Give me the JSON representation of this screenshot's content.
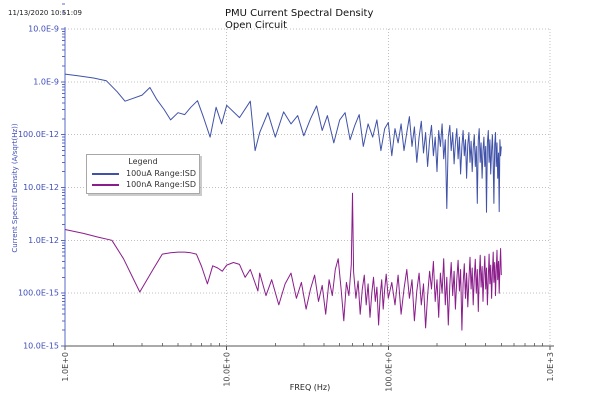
{
  "header": {
    "timestamp": "11/13/2020 10:51:09",
    "title_line1": "PMU Current Spectral Density",
    "title_line2": "Open Circuit"
  },
  "chart_data": {
    "type": "line",
    "title": "PMU Current Spectral Density",
    "subtitle": "Open Circuit",
    "xlabel": "FREQ (Hz)",
    "ylabel": "Current Spectral Density (A/sqrt(Hz))",
    "x_scale": "log",
    "y_scale": "log",
    "xlim": [
      1,
      1000
    ],
    "ylim": [
      1e-14,
      1e-08
    ],
    "grid": "dotted",
    "x_ticks": [
      {
        "value": 1,
        "label": "1.0E+0"
      },
      {
        "value": 10,
        "label": "10.0E+0"
      },
      {
        "value": 100,
        "label": "100.0E+0"
      },
      {
        "value": 1000,
        "label": "1.0E+3"
      }
    ],
    "y_ticks": [
      {
        "value": 1e-08,
        "label": "10.0E-9"
      },
      {
        "value": 1e-09,
        "label": "1.0E-9"
      },
      {
        "value": 1e-10,
        "label": "100.0E-12"
      },
      {
        "value": 1e-11,
        "label": "10.0E-12"
      },
      {
        "value": 1e-12,
        "label": "1.0E-12"
      },
      {
        "value": 1e-13,
        "label": "100.0E-15"
      },
      {
        "value": 1e-14,
        "label": "10.0E-15"
      }
    ],
    "legend": {
      "title": "Legend",
      "position": "left-middle"
    },
    "colors": {
      "axis_blue": "#5a68c8",
      "tick_text_blue": "#3e4eb8",
      "x_axis_line": "#555555",
      "gridline": "#c0c0c0"
    },
    "series": [
      {
        "name": "100uA Range:ISD",
        "color": "#4052a8",
        "points": [
          [
            1,
            1.4e-09
          ],
          [
            1.2,
            1.3e-09
          ],
          [
            1.5,
            1.18e-09
          ],
          [
            1.8,
            1.05e-09
          ],
          [
            2.1,
            6.5e-10
          ],
          [
            2.35,
            4.3e-10
          ],
          [
            2.6,
            4.8e-10
          ],
          [
            3,
            5.6e-10
          ],
          [
            3.35,
            7.8e-10
          ],
          [
            3.7,
            4.6e-10
          ],
          [
            4.1,
            3e-10
          ],
          [
            4.5,
            1.9e-10
          ],
          [
            5,
            2.6e-10
          ],
          [
            5.5,
            2.4e-10
          ],
          [
            6,
            3.3e-10
          ],
          [
            6.6,
            4.4e-10
          ],
          [
            7.2,
            2.1e-10
          ],
          [
            7.9,
            9e-11
          ],
          [
            8.6,
            3.3e-10
          ],
          [
            9.3,
            1.6e-10
          ],
          [
            10,
            3.6e-10
          ],
          [
            12,
            2.1e-10
          ],
          [
            14,
            4.3e-10
          ],
          [
            15,
            5e-11
          ],
          [
            16,
            1.1e-10
          ],
          [
            18,
            2.6e-10
          ],
          [
            20,
            9e-11
          ],
          [
            22.5,
            2.7e-10
          ],
          [
            25,
            1.6e-10
          ],
          [
            27.5,
            2.3e-10
          ],
          [
            30,
            9.5e-11
          ],
          [
            33,
            2e-10
          ],
          [
            36,
            3.5e-10
          ],
          [
            39,
            1.2e-10
          ],
          [
            42,
            2.3e-10
          ],
          [
            46,
            7e-11
          ],
          [
            50,
            1.9e-10
          ],
          [
            54,
            2.6e-10
          ],
          [
            58,
            8e-11
          ],
          [
            62,
            1.5e-10
          ],
          [
            66,
            2.4e-10
          ],
          [
            70,
            6e-11
          ],
          [
            75,
            1.6e-10
          ],
          [
            80,
            9e-11
          ],
          [
            85,
            1.9e-10
          ],
          [
            90,
            5e-11
          ],
          [
            95,
            1.3e-10
          ],
          [
            100,
            1.7e-10
          ],
          [
            105,
            4e-11
          ],
          [
            110,
            1.3e-10
          ],
          [
            115,
            7e-11
          ],
          [
            120,
            1.6e-10
          ],
          [
            125,
            5e-11
          ],
          [
            130,
            1.1e-10
          ],
          [
            135,
            2.2e-10
          ],
          [
            140,
            6e-11
          ],
          [
            145,
            1.4e-10
          ],
          [
            150,
            3e-11
          ],
          [
            155,
            9e-11
          ],
          [
            160,
            1.8e-10
          ],
          [
            165,
            4.5e-11
          ],
          [
            170,
            1.1e-10
          ],
          [
            175,
            2.5e-11
          ],
          [
            180,
            8e-11
          ],
          [
            185,
            1.5e-10
          ],
          [
            190,
            4e-11
          ],
          [
            195,
            9e-11
          ],
          [
            200,
            2e-11
          ],
          [
            205,
            1.2e-10
          ],
          [
            210,
            6e-11
          ],
          [
            215,
            1.6e-10
          ],
          [
            220,
            3.5e-11
          ],
          [
            225,
            8e-11
          ],
          [
            230,
            4e-12
          ],
          [
            235,
            9e-11
          ],
          [
            240,
            1.5e-10
          ],
          [
            245,
            5e-11
          ],
          [
            250,
            1.1e-10
          ],
          [
            255,
            2.8e-11
          ],
          [
            260,
            7e-11
          ],
          [
            265,
            1.3e-10
          ],
          [
            270,
            3.5e-11
          ],
          [
            275,
            9e-11
          ],
          [
            280,
            1.8e-11
          ],
          [
            285,
            6e-11
          ],
          [
            290,
            1.2e-10
          ],
          [
            295,
            4e-11
          ],
          [
            300,
            8e-11
          ],
          [
            305,
            1.5e-11
          ],
          [
            310,
            6.5e-11
          ],
          [
            315,
            1.1e-10
          ],
          [
            320,
            3e-11
          ],
          [
            325,
            7.5e-11
          ],
          [
            330,
            2e-11
          ],
          [
            335,
            5.5e-11
          ],
          [
            340,
            1e-10
          ],
          [
            345,
            2.5e-11
          ],
          [
            350,
            6e-11
          ],
          [
            355,
            5e-12
          ],
          [
            360,
            8e-11
          ],
          [
            365,
            1.3e-10
          ],
          [
            370,
            3e-11
          ],
          [
            375,
            7e-11
          ],
          [
            380,
            1.5e-11
          ],
          [
            385,
            5e-11
          ],
          [
            390,
            9e-11
          ],
          [
            395,
            2.5e-11
          ],
          [
            400,
            6e-11
          ],
          [
            405,
            3.4e-12
          ],
          [
            410,
            7e-11
          ],
          [
            415,
            1.2e-10
          ],
          [
            420,
            3e-11
          ],
          [
            425,
            8e-11
          ],
          [
            430,
            1.8e-11
          ],
          [
            435,
            5e-11
          ],
          [
            440,
            1e-10
          ],
          [
            445,
            2.8e-11
          ],
          [
            450,
            5e-12
          ],
          [
            455,
            6.5e-11
          ],
          [
            460,
            1.1e-10
          ],
          [
            465,
            2.5e-11
          ],
          [
            470,
            7e-11
          ],
          [
            475,
            1.5e-11
          ],
          [
            480,
            4.5e-11
          ],
          [
            485,
            3.5e-12
          ],
          [
            490,
            8e-11
          ],
          [
            495,
            4e-11
          ],
          [
            500,
            6e-11
          ]
        ]
      },
      {
        "name": "100nA Range:ISD",
        "color": "#8b1d8b",
        "points": [
          [
            1,
            1.6e-12
          ],
          [
            1.3,
            1.35e-12
          ],
          [
            1.6,
            1.15e-12
          ],
          [
            1.95,
            1e-12
          ],
          [
            2.3,
            4.5e-13
          ],
          [
            2.9,
            1.05e-13
          ],
          [
            3.5,
            2.8e-13
          ],
          [
            4,
            5.5e-13
          ],
          [
            4.5,
            5.8e-13
          ],
          [
            5,
            6e-13
          ],
          [
            5.5,
            6e-13
          ],
          [
            6,
            5.8e-13
          ],
          [
            6.5,
            5.5e-13
          ],
          [
            7,
            3.2e-13
          ],
          [
            7.6,
            1.5e-13
          ],
          [
            8.2,
            3.3e-13
          ],
          [
            8.8,
            3e-13
          ],
          [
            9.4,
            2.6e-13
          ],
          [
            10,
            3.4e-13
          ],
          [
            11,
            3.8e-13
          ],
          [
            12,
            3.5e-13
          ],
          [
            13,
            2e-13
          ],
          [
            14,
            2.8e-13
          ],
          [
            15.6,
            1.1e-13
          ],
          [
            16,
            2.4e-13
          ],
          [
            17.5,
            9e-14
          ],
          [
            19,
            1.8e-13
          ],
          [
            21,
            6e-14
          ],
          [
            23,
            1.5e-13
          ],
          [
            25,
            2.4e-13
          ],
          [
            27,
            8e-14
          ],
          [
            29,
            1.6e-13
          ],
          [
            31,
            5e-14
          ],
          [
            33,
            1.2e-13
          ],
          [
            35,
            2.2e-13
          ],
          [
            37,
            7e-14
          ],
          [
            39,
            1.4e-13
          ],
          [
            41,
            4e-14
          ],
          [
            43,
            1.8e-13
          ],
          [
            45,
            9e-14
          ],
          [
            47,
            2.8e-13
          ],
          [
            49,
            4.5e-13
          ],
          [
            51,
            1.2e-13
          ],
          [
            53,
            3e-14
          ],
          [
            55,
            1.6e-13
          ],
          [
            57,
            9e-14
          ],
          [
            59,
            3.5e-13
          ],
          [
            60,
            7.8e-12
          ],
          [
            61,
            2.5e-13
          ],
          [
            63,
            8e-14
          ],
          [
            65,
            1.7e-13
          ],
          [
            67,
            4e-14
          ],
          [
            69,
            1.2e-13
          ],
          [
            71,
            2.2e-13
          ],
          [
            73,
            6e-14
          ],
          [
            75,
            1.5e-13
          ],
          [
            77,
            3.5e-14
          ],
          [
            79,
            1e-13
          ],
          [
            81,
            2e-13
          ],
          [
            83,
            7e-14
          ],
          [
            85,
            1.3e-13
          ],
          [
            87,
            2.5e-14
          ],
          [
            89,
            9e-14
          ],
          [
            91,
            1.8e-13
          ],
          [
            93,
            5e-14
          ],
          [
            95,
            1.2e-13
          ],
          [
            97,
            2.3e-13
          ],
          [
            100,
            8e-14
          ],
          [
            105,
            1.6e-13
          ],
          [
            110,
            6e-14
          ],
          [
            115,
            2.2e-13
          ],
          [
            120,
            4e-14
          ],
          [
            125,
            1.2e-13
          ],
          [
            130,
            2.8e-13
          ],
          [
            135,
            8e-14
          ],
          [
            140,
            1.8e-13
          ],
          [
            145,
            3e-14
          ],
          [
            150,
            1.1e-13
          ],
          [
            155,
            2.4e-13
          ],
          [
            160,
            6e-14
          ],
          [
            165,
            1.5e-13
          ],
          [
            170,
            2.2e-14
          ],
          [
            175,
            9e-14
          ],
          [
            180,
            2.6e-13
          ],
          [
            185,
            1.2e-13
          ],
          [
            190,
            4e-13
          ],
          [
            195,
            7e-14
          ],
          [
            200,
            1.8e-13
          ],
          [
            205,
            3.5e-14
          ],
          [
            210,
            2.4e-13
          ],
          [
            215,
            1e-13
          ],
          [
            220,
            4.5e-13
          ],
          [
            225,
            6e-14
          ],
          [
            230,
            2e-13
          ],
          [
            235,
            2.5e-14
          ],
          [
            240,
            1.4e-13
          ],
          [
            245,
            3.8e-13
          ],
          [
            250,
            9e-14
          ],
          [
            255,
            2.6e-13
          ],
          [
            260,
            5e-14
          ],
          [
            265,
            1.8e-13
          ],
          [
            270,
            4.2e-13
          ],
          [
            275,
            1.1e-13
          ],
          [
            280,
            2.8e-13
          ],
          [
            285,
            2e-14
          ],
          [
            290,
            1.5e-13
          ],
          [
            295,
            3.6e-13
          ],
          [
            300,
            8e-14
          ],
          [
            305,
            2.4e-13
          ],
          [
            310,
            5.5e-14
          ],
          [
            315,
            1.8e-13
          ],
          [
            320,
            4.8e-13
          ],
          [
            325,
            1.2e-13
          ],
          [
            330,
            3e-13
          ],
          [
            335,
            6e-14
          ],
          [
            340,
            2e-13
          ],
          [
            345,
            4.4e-13
          ],
          [
            350,
            1e-13
          ],
          [
            355,
            2.8e-13
          ],
          [
            360,
            4.5e-14
          ],
          [
            365,
            1.9e-13
          ],
          [
            370,
            5.2e-13
          ],
          [
            375,
            1.3e-13
          ],
          [
            380,
            3.2e-13
          ],
          [
            385,
            7e-14
          ],
          [
            390,
            2.2e-13
          ],
          [
            395,
            5e-13
          ],
          [
            400,
            1.2e-13
          ],
          [
            405,
            3e-13
          ],
          [
            410,
            6e-14
          ],
          [
            415,
            2e-13
          ],
          [
            420,
            5.5e-13
          ],
          [
            425,
            1.5e-13
          ],
          [
            430,
            3.4e-13
          ],
          [
            435,
            8e-14
          ],
          [
            440,
            2.4e-13
          ],
          [
            445,
            6e-13
          ],
          [
            450,
            1.6e-13
          ],
          [
            455,
            3.8e-13
          ],
          [
            460,
            9e-14
          ],
          [
            465,
            2.6e-13
          ],
          [
            470,
            6.5e-13
          ],
          [
            475,
            1.8e-13
          ],
          [
            480,
            4e-13
          ],
          [
            485,
            1e-13
          ],
          [
            490,
            3e-13
          ],
          [
            495,
            7e-13
          ],
          [
            500,
            2.2e-13
          ]
        ]
      }
    ]
  }
}
